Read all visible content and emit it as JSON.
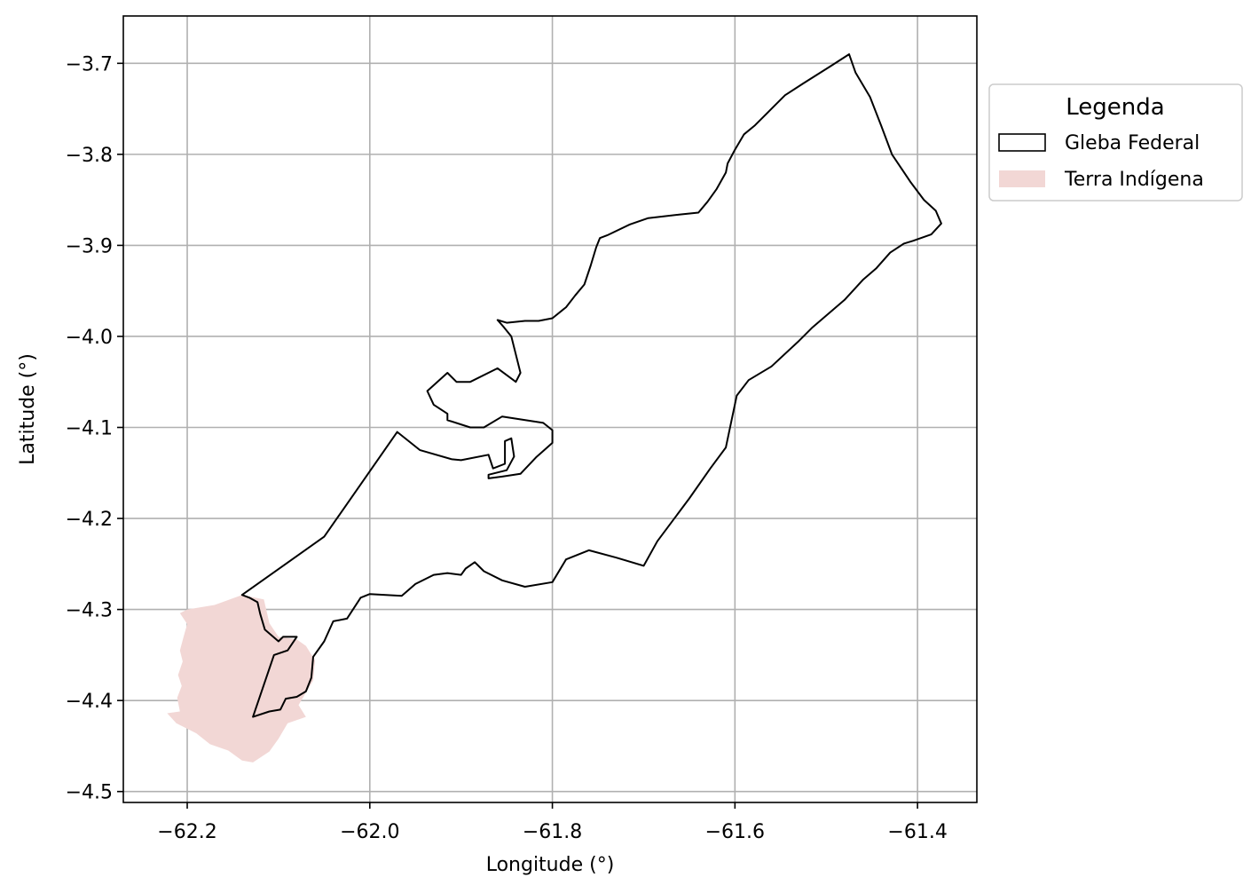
{
  "chart_data": {
    "type": "map",
    "xlabel": "Longitude (°)",
    "ylabel": "Latitude (°)",
    "xlim": [
      -62.27,
      -61.335
    ],
    "ylim": [
      -4.512,
      -3.648
    ],
    "grid": true,
    "xticks": [
      -62.2,
      -62.0,
      -61.8,
      -61.6,
      -61.4
    ],
    "yticks": [
      -3.7,
      -3.8,
      -3.9,
      -4.0,
      -4.1,
      -4.2,
      -4.3,
      -4.4,
      -4.5
    ],
    "xtick_labels": [
      "−62.2",
      "−62.0",
      "−61.8",
      "−61.6",
      "−61.4"
    ],
    "ytick_labels": [
      "−3.7",
      "−3.8",
      "−3.9",
      "−4.0",
      "−4.1",
      "−4.2",
      "−4.3",
      "−4.4",
      "−4.5"
    ],
    "legend": {
      "title": "Legenda",
      "position": "outside-upper-right",
      "items": [
        {
          "label": "Gleba Federal",
          "style": "outline",
          "color": "#000000"
        },
        {
          "label": "Terra Indígena",
          "style": "fill",
          "color": "#f2d7d5"
        }
      ]
    },
    "layers": [
      {
        "name": "Terra Indígena",
        "kind": "polygon",
        "fill": "#f2d7d5",
        "stroke": "none",
        "coordinates": [
          [
            -62.2,
            -4.3
          ],
          [
            -62.17,
            -4.295
          ],
          [
            -62.14,
            -4.284
          ],
          [
            -62.116,
            -4.289
          ],
          [
            -62.11,
            -4.315
          ],
          [
            -62.1,
            -4.33
          ],
          [
            -62.08,
            -4.333
          ],
          [
            -62.07,
            -4.34
          ],
          [
            -62.06,
            -4.356
          ],
          [
            -62.062,
            -4.378
          ],
          [
            -62.078,
            -4.405
          ],
          [
            -62.07,
            -4.418
          ],
          [
            -62.09,
            -4.425
          ],
          [
            -62.1,
            -4.442
          ],
          [
            -62.11,
            -4.456
          ],
          [
            -62.128,
            -4.468
          ],
          [
            -62.14,
            -4.466
          ],
          [
            -62.155,
            -4.455
          ],
          [
            -62.175,
            -4.448
          ],
          [
            -62.19,
            -4.436
          ],
          [
            -62.198,
            -4.432
          ],
          [
            -62.212,
            -4.425
          ],
          [
            -62.222,
            -4.414
          ],
          [
            -62.208,
            -4.412
          ],
          [
            -62.211,
            -4.397
          ],
          [
            -62.206,
            -4.384
          ],
          [
            -62.21,
            -4.372
          ],
          [
            -62.205,
            -4.357
          ],
          [
            -62.208,
            -4.345
          ],
          [
            -62.204,
            -4.33
          ],
          [
            -62.2,
            -4.316
          ],
          [
            -62.208,
            -4.304
          ]
        ]
      },
      {
        "name": "Gleba Federal",
        "kind": "polygon",
        "fill": "none",
        "stroke": "#000000",
        "coordinates": [
          [
            -62.14,
            -4.284
          ],
          [
            -62.05,
            -4.22
          ],
          [
            -61.97,
            -4.105
          ],
          [
            -61.945,
            -4.125
          ],
          [
            -61.91,
            -4.135
          ],
          [
            -61.9,
            -4.136
          ],
          [
            -61.87,
            -4.13
          ],
          [
            -61.865,
            -4.145
          ],
          [
            -61.852,
            -4.14
          ],
          [
            -61.852,
            -4.115
          ],
          [
            -61.845,
            -4.112
          ],
          [
            -61.842,
            -4.132
          ],
          [
            -61.85,
            -4.147
          ],
          [
            -61.87,
            -4.152
          ],
          [
            -61.87,
            -4.156
          ],
          [
            -61.855,
            -4.154
          ],
          [
            -61.835,
            -4.151
          ],
          [
            -61.818,
            -4.133
          ],
          [
            -61.8,
            -4.117
          ],
          [
            -61.8,
            -4.103
          ],
          [
            -61.81,
            -4.095
          ],
          [
            -61.855,
            -4.088
          ],
          [
            -61.875,
            -4.1
          ],
          [
            -61.89,
            -4.1
          ],
          [
            -61.915,
            -4.092
          ],
          [
            -61.915,
            -4.085
          ],
          [
            -61.93,
            -4.075
          ],
          [
            -61.937,
            -4.06
          ],
          [
            -61.915,
            -4.04
          ],
          [
            -61.905,
            -4.05
          ],
          [
            -61.89,
            -4.05
          ],
          [
            -61.86,
            -4.035
          ],
          [
            -61.84,
            -4.05
          ],
          [
            -61.835,
            -4.04
          ],
          [
            -61.845,
            -4.0
          ],
          [
            -61.853,
            -3.99
          ],
          [
            -61.86,
            -3.982
          ],
          [
            -61.85,
            -3.985
          ],
          [
            -61.83,
            -3.983
          ],
          [
            -61.815,
            -3.983
          ],
          [
            -61.8,
            -3.98
          ],
          [
            -61.785,
            -3.968
          ],
          [
            -61.775,
            -3.955
          ],
          [
            -61.765,
            -3.943
          ],
          [
            -61.758,
            -3.922
          ],
          [
            -61.752,
            -3.902
          ],
          [
            -61.748,
            -3.892
          ],
          [
            -61.74,
            -3.889
          ],
          [
            -61.715,
            -3.877
          ],
          [
            -61.695,
            -3.87
          ],
          [
            -61.66,
            -3.866
          ],
          [
            -61.64,
            -3.864
          ],
          [
            -61.63,
            -3.852
          ],
          [
            -61.62,
            -3.838
          ],
          [
            -61.61,
            -3.82
          ],
          [
            -61.608,
            -3.81
          ],
          [
            -61.6,
            -3.795
          ],
          [
            -61.59,
            -3.778
          ],
          [
            -61.578,
            -3.768
          ],
          [
            -61.56,
            -3.75
          ],
          [
            -61.545,
            -3.735
          ],
          [
            -61.525,
            -3.722
          ],
          [
            -61.495,
            -3.703
          ],
          [
            -61.475,
            -3.69
          ],
          [
            -61.468,
            -3.71
          ],
          [
            -61.452,
            -3.737
          ],
          [
            -61.44,
            -3.768
          ],
          [
            -61.428,
            -3.8
          ],
          [
            -61.408,
            -3.83
          ],
          [
            -61.393,
            -3.85
          ],
          [
            -61.38,
            -3.862
          ],
          [
            -61.374,
            -3.876
          ],
          [
            -61.385,
            -3.888
          ],
          [
            -61.405,
            -3.895
          ],
          [
            -61.415,
            -3.898
          ],
          [
            -61.43,
            -3.908
          ],
          [
            -61.445,
            -3.925
          ],
          [
            -61.46,
            -3.938
          ],
          [
            -61.48,
            -3.96
          ],
          [
            -61.515,
            -3.99
          ],
          [
            -61.53,
            -4.005
          ],
          [
            -61.56,
            -4.033
          ],
          [
            -61.585,
            -4.048
          ],
          [
            -61.598,
            -4.065
          ],
          [
            -61.61,
            -4.122
          ],
          [
            -61.627,
            -4.145
          ],
          [
            -61.65,
            -4.178
          ],
          [
            -61.685,
            -4.225
          ],
          [
            -61.7,
            -4.252
          ],
          [
            -61.73,
            -4.243
          ],
          [
            -61.76,
            -4.235
          ],
          [
            -61.785,
            -4.245
          ],
          [
            -61.8,
            -4.27
          ],
          [
            -61.83,
            -4.275
          ],
          [
            -61.855,
            -4.268
          ],
          [
            -61.875,
            -4.258
          ],
          [
            -61.885,
            -4.248
          ],
          [
            -61.895,
            -4.255
          ],
          [
            -61.9,
            -4.262
          ],
          [
            -61.915,
            -4.26
          ],
          [
            -61.93,
            -4.262
          ],
          [
            -61.95,
            -4.272
          ],
          [
            -61.965,
            -4.285
          ],
          [
            -62.0,
            -4.283
          ],
          [
            -62.01,
            -4.287
          ],
          [
            -62.025,
            -4.31
          ],
          [
            -62.04,
            -4.313
          ],
          [
            -62.05,
            -4.335
          ],
          [
            -62.062,
            -4.352
          ],
          [
            -62.064,
            -4.375
          ],
          [
            -62.07,
            -4.39
          ],
          [
            -62.08,
            -4.396
          ],
          [
            -62.092,
            -4.398
          ],
          [
            -62.098,
            -4.41
          ],
          [
            -62.11,
            -4.412
          ],
          [
            -62.128,
            -4.418
          ],
          [
            -62.105,
            -4.35
          ],
          [
            -62.09,
            -4.345
          ],
          [
            -62.08,
            -4.33
          ],
          [
            -62.095,
            -4.33
          ],
          [
            -62.1,
            -4.335
          ],
          [
            -62.115,
            -4.322
          ],
          [
            -62.12,
            -4.305
          ],
          [
            -62.123,
            -4.292
          ],
          [
            -62.132,
            -4.287
          ]
        ]
      }
    ]
  }
}
